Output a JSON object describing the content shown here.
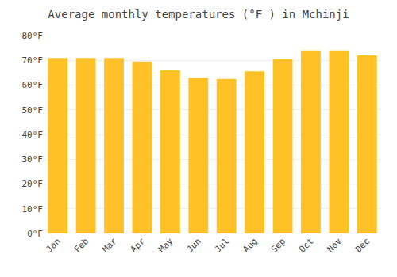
{
  "chart_data": {
    "type": "bar",
    "title": "Average monthly temperatures (°F ) in Mchinji",
    "categories": [
      "Jan",
      "Feb",
      "Mar",
      "Apr",
      "May",
      "Jun",
      "Jul",
      "Aug",
      "Sep",
      "Oct",
      "Nov",
      "Dec"
    ],
    "values": [
      71,
      71,
      71,
      69.5,
      66,
      63,
      62.5,
      65.5,
      70.5,
      74,
      74,
      72
    ],
    "color": "#FFC125",
    "ylim": [
      0,
      80
    ],
    "yticks": [
      {
        "value": 0,
        "label": "0°F"
      },
      {
        "value": 10,
        "label": "10°F"
      },
      {
        "value": 20,
        "label": "20°F"
      },
      {
        "value": 30,
        "label": "30°F"
      },
      {
        "value": 40,
        "label": "40°F"
      },
      {
        "value": 50,
        "label": "50°F"
      },
      {
        "value": 60,
        "label": "60°F"
      },
      {
        "value": 70,
        "label": "70°F"
      },
      {
        "value": 80,
        "label": "80°F"
      }
    ],
    "grid": true
  }
}
